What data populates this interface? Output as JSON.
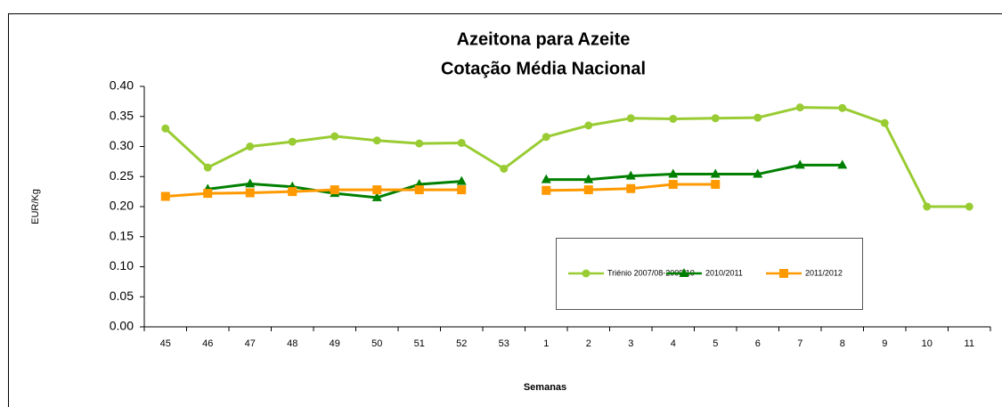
{
  "chart_data": {
    "type": "line",
    "title": "Azeitona para Azeite",
    "subtitle": "Cotação Média Nacional",
    "x_label": "Semanas",
    "y_label": "EUR/Kg",
    "categories": [
      "45",
      "46",
      "47",
      "48",
      "49",
      "50",
      "51",
      "52",
      "53",
      "1",
      "2",
      "3",
      "4",
      "5",
      "6",
      "7",
      "8",
      "9",
      "10",
      "11"
    ],
    "series": [
      {
        "name": "Triénio 2007/08-2009/10",
        "color": "#99cc33",
        "marker": "circle",
        "values": [
          0.33,
          0.265,
          0.3,
          0.308,
          0.317,
          0.31,
          0.305,
          0.306,
          0.263,
          0.316,
          0.335,
          0.347,
          0.346,
          0.347,
          0.348,
          0.365,
          0.364,
          0.339,
          0.2,
          0.2
        ]
      },
      {
        "name": "2010/2011",
        "color": "#008000",
        "marker": "triangle",
        "values": [
          null,
          0.229,
          0.238,
          0.233,
          0.222,
          0.215,
          0.237,
          0.242,
          null,
          0.245,
          0.245,
          0.251,
          0.254,
          0.254,
          0.254,
          0.269,
          0.269,
          null,
          null,
          null
        ]
      },
      {
        "name": "2011/2012",
        "color": "#ff9900",
        "marker": "square",
        "values": [
          0.217,
          0.222,
          0.223,
          0.225,
          0.228,
          0.228,
          0.228,
          0.228,
          null,
          0.227,
          0.228,
          0.23,
          0.237,
          0.237,
          null,
          null,
          null,
          null,
          null,
          null
        ]
      }
    ],
    "ylim": [
      0,
      0.4
    ],
    "yticks": [
      {
        "value": 0,
        "label": "0.00"
      },
      {
        "value": 0.05,
        "label": "0.05"
      },
      {
        "value": 0.1,
        "label": "0.10"
      },
      {
        "value": 0.15,
        "label": "0.15"
      },
      {
        "value": 0.2,
        "label": "0.20"
      },
      {
        "value": 0.25,
        "label": "0.25"
      },
      {
        "value": 0.3,
        "label": "0.30"
      },
      {
        "value": 0.35,
        "label": "0.35"
      },
      {
        "value": 0.4,
        "label": "0.40"
      }
    ],
    "grid": false
  }
}
